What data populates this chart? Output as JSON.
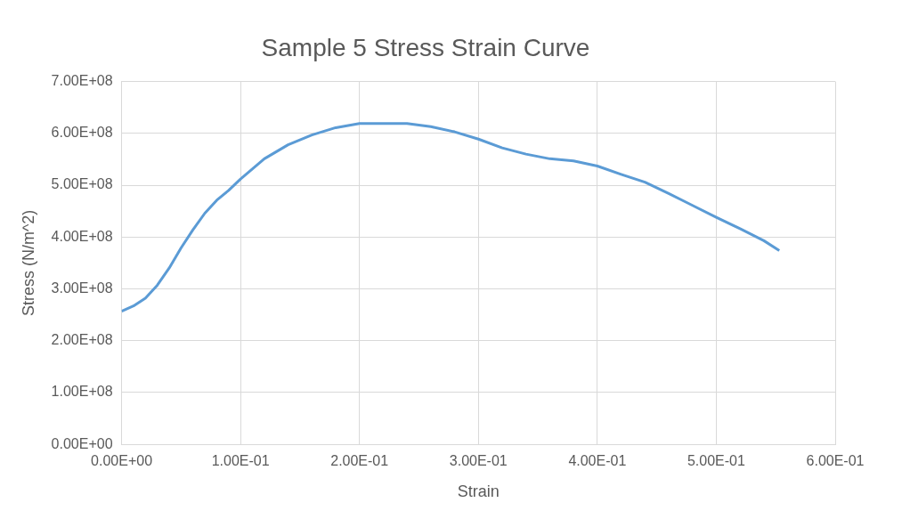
{
  "chart_data": {
    "type": "line",
    "title": "Sample 5 Stress Strain Curve",
    "xlabel": "Strain",
    "ylabel": "Stress (N/m^2)",
    "xlim": [
      0,
      0.6
    ],
    "xticks": [
      {
        "value": 0,
        "label": "0.00E+00"
      },
      {
        "value": 0.1,
        "label": "1.00E-01"
      },
      {
        "value": 0.2,
        "label": "2.00E-01"
      },
      {
        "value": 0.3,
        "label": "3.00E-01"
      },
      {
        "value": 0.4,
        "label": "4.00E-01"
      },
      {
        "value": 0.5,
        "label": "5.00E-01"
      },
      {
        "value": 0.6,
        "label": "6.00E-01"
      }
    ],
    "ylim": [
      0,
      700000000
    ],
    "yticks": [
      {
        "value": 0,
        "label": "0.00E+00"
      },
      {
        "value": 100000000,
        "label": "1.00E+08"
      },
      {
        "value": 200000000,
        "label": "2.00E+08"
      },
      {
        "value": 300000000,
        "label": "3.00E+08"
      },
      {
        "value": 400000000,
        "label": "4.00E+08"
      },
      {
        "value": 500000000,
        "label": "5.00E+08"
      },
      {
        "value": 600000000,
        "label": "6.00E+08"
      },
      {
        "value": 700000000,
        "label": "7.00E+08"
      }
    ],
    "grid": true,
    "marker": "none",
    "series": [
      {
        "color": "#5b9bd5",
        "x": [
          0,
          0.01,
          0.02,
          0.03,
          0.04,
          0.05,
          0.06,
          0.07,
          0.08,
          0.09,
          0.1,
          0.12,
          0.14,
          0.16,
          0.18,
          0.2,
          0.22,
          0.24,
          0.26,
          0.28,
          0.3,
          0.32,
          0.34,
          0.36,
          0.38,
          0.4,
          0.42,
          0.44,
          0.46,
          0.48,
          0.5,
          0.52,
          0.54,
          0.553
        ],
        "values": [
          257000000,
          267000000,
          282000000,
          307000000,
          340000000,
          379000000,
          414000000,
          446000000,
          471000000,
          490000000,
          512000000,
          551000000,
          578000000,
          597000000,
          611000000,
          619000000,
          619000000,
          619000000,
          613000000,
          603000000,
          589000000,
          572000000,
          560000000,
          551000000,
          547000000,
          537000000,
          521000000,
          506000000,
          484000000,
          461000000,
          438000000,
          416000000,
          393000000,
          374000000
        ]
      }
    ]
  }
}
